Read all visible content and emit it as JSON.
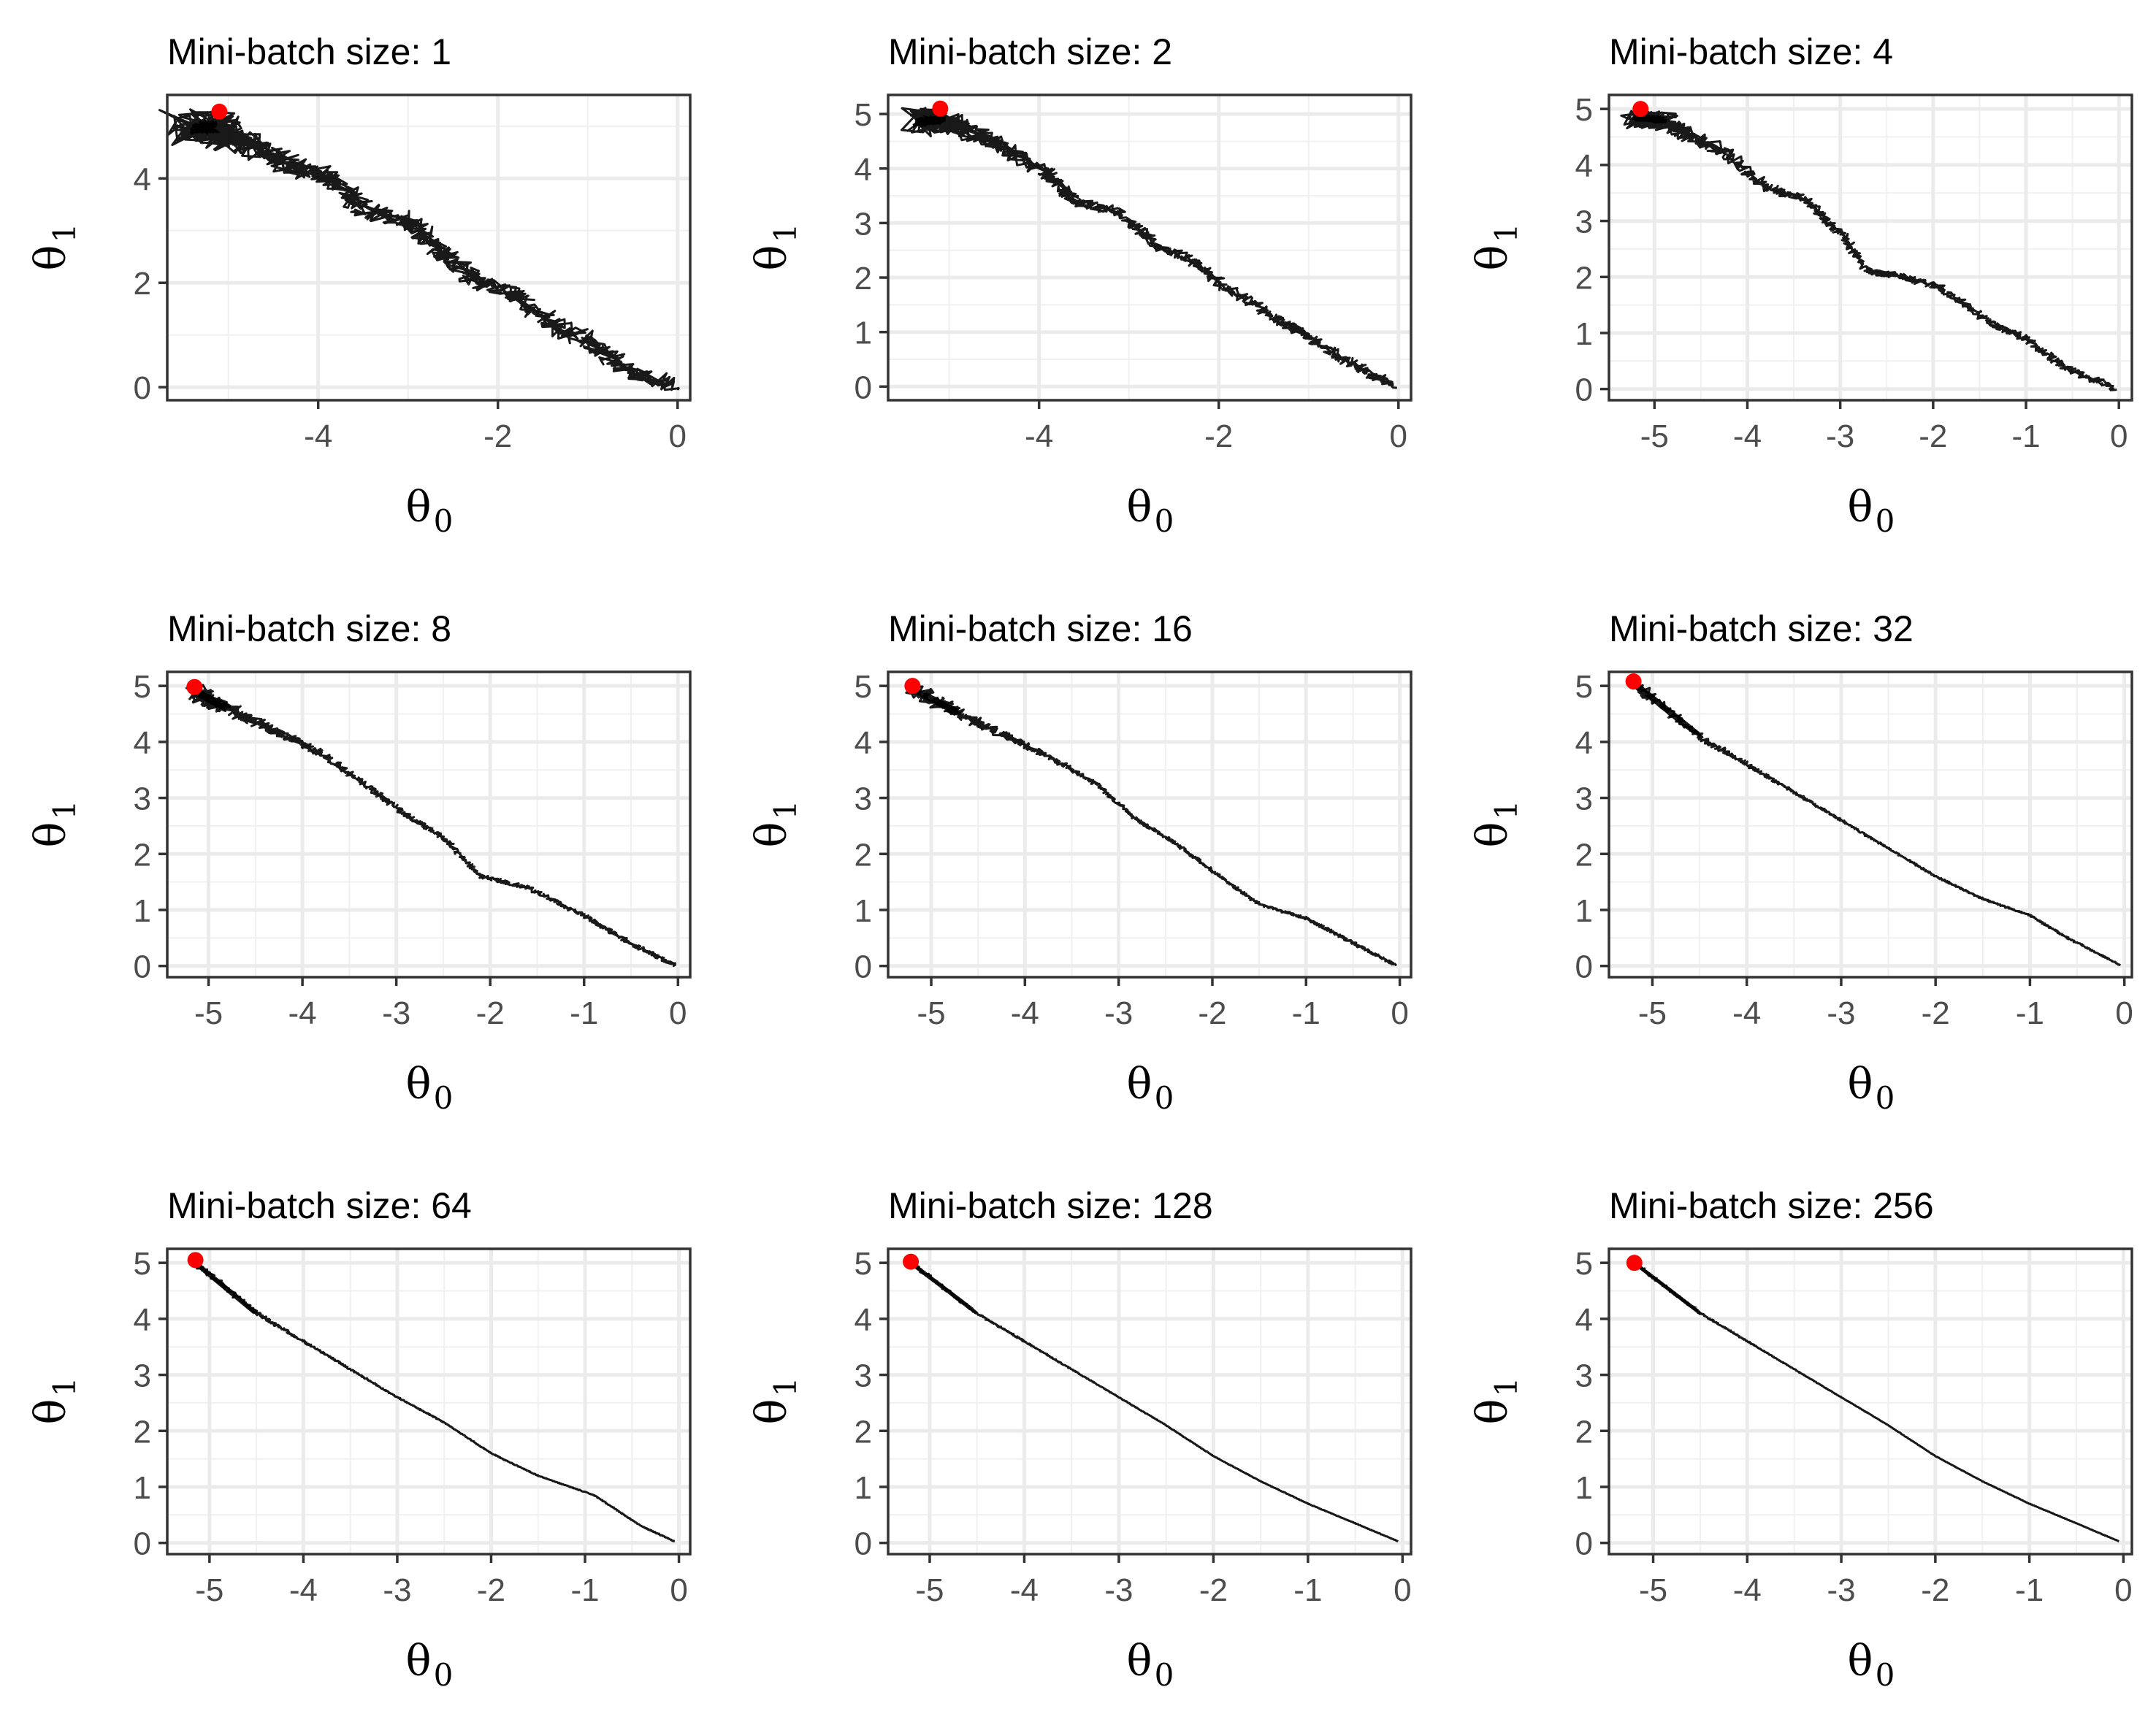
{
  "chart_data": [
    {
      "type": "line",
      "title": "Mini-batch size: 1",
      "xlabel": "θ",
      "xlabel_sub": "0",
      "ylabel": "θ",
      "ylabel_sub": "1",
      "xlim": [
        -5.68,
        0.14
      ],
      "ylim": [
        -0.25,
        5.6
      ],
      "xticks": [
        -4,
        -2,
        0
      ],
      "xtick_labels": [
        "-4",
        "-2",
        "0"
      ],
      "yticks": [
        0,
        2,
        4
      ],
      "ytick_labels": [
        "0",
        "2",
        "4"
      ],
      "grid": true,
      "noise": 0.13,
      "spread": 0.3,
      "series": [
        {
          "x": [
            -0.05,
            -0.6,
            -1.0,
            -1.4,
            -1.8,
            -2.3,
            -2.7,
            -3.0,
            -3.5,
            -3.8,
            -4.2,
            -4.7,
            -5.0,
            -5.2,
            -5.35
          ],
          "y": [
            0.02,
            0.35,
            0.9,
            1.2,
            1.75,
            2.1,
            2.7,
            3.2,
            3.4,
            4.0,
            4.2,
            4.6,
            4.8,
            5.0,
            4.95
          ]
        },
        {
          "x": [
            -5.1
          ],
          "y": [
            5.28
          ],
          "marker": "point",
          "color": "#ff0000"
        }
      ]
    },
    {
      "type": "line",
      "title": "Mini-batch size: 2",
      "xlabel": "θ",
      "xlabel_sub": "0",
      "ylabel": "θ",
      "ylabel_sub": "1",
      "xlim": [
        -5.68,
        0.14
      ],
      "ylim": [
        -0.25,
        5.35
      ],
      "xticks": [
        -4,
        -2,
        0
      ],
      "xtick_labels": [
        "-4",
        "-2",
        "0"
      ],
      "yticks": [
        0,
        1,
        2,
        3,
        4,
        5
      ],
      "ytick_labels": [
        "0",
        "1",
        "2",
        "3",
        "4",
        "5"
      ],
      "grid": true,
      "noise": 0.07,
      "spread": 0.2,
      "series": [
        {
          "x": [
            -0.05,
            -0.5,
            -1.0,
            -1.3,
            -1.9,
            -2.3,
            -2.7,
            -3.1,
            -3.6,
            -3.9,
            -4.4,
            -4.8,
            -5.1,
            -5.35
          ],
          "y": [
            0.02,
            0.4,
            0.9,
            1.2,
            1.8,
            2.3,
            2.6,
            3.2,
            3.4,
            3.9,
            4.4,
            4.7,
            4.9,
            4.85
          ]
        },
        {
          "x": [
            -5.1
          ],
          "y": [
            5.1
          ],
          "marker": "point",
          "color": "#ff0000"
        }
      ]
    },
    {
      "type": "line",
      "title": "Mini-batch size: 4",
      "xlabel": "θ",
      "xlabel_sub": "0",
      "ylabel": "θ",
      "ylabel_sub": "1",
      "xlim": [
        -5.49,
        0.14
      ],
      "ylim": [
        -0.2,
        5.25
      ],
      "xticks": [
        -5,
        -4,
        -3,
        -2,
        -1,
        0
      ],
      "xtick_labels": [
        "-5",
        "-4",
        "-3",
        "-2",
        "-1",
        "0"
      ],
      "yticks": [
        0,
        1,
        2,
        3,
        4,
        5
      ],
      "ytick_labels": [
        "0",
        "1",
        "2",
        "3",
        "4",
        "5"
      ],
      "grid": true,
      "noise": 0.05,
      "spread": 0.15,
      "series": [
        {
          "x": [
            -0.05,
            -0.6,
            -1.0,
            -1.4,
            -1.9,
            -2.3,
            -2.7,
            -3.0,
            -3.4,
            -3.8,
            -4.2,
            -4.6,
            -4.9,
            -5.2
          ],
          "y": [
            0.02,
            0.4,
            0.9,
            1.2,
            1.8,
            2.0,
            2.1,
            2.8,
            3.4,
            3.6,
            4.2,
            4.5,
            4.8,
            4.85
          ]
        },
        {
          "x": [
            -5.15
          ],
          "y": [
            5.0
          ],
          "marker": "point",
          "color": "#ff0000"
        }
      ]
    },
    {
      "type": "line",
      "title": "Mini-batch size: 8",
      "xlabel": "θ",
      "xlabel_sub": "0",
      "ylabel": "θ",
      "ylabel_sub": "1",
      "xlim": [
        -5.44,
        0.13
      ],
      "ylim": [
        -0.2,
        5.25
      ],
      "xticks": [
        -5,
        -4,
        -3,
        -2,
        -1,
        0
      ],
      "xtick_labels": [
        "-5",
        "-4",
        "-3",
        "-2",
        "-1",
        "0"
      ],
      "yticks": [
        0,
        1,
        2,
        3,
        4,
        5
      ],
      "ytick_labels": [
        "0",
        "1",
        "2",
        "3",
        "4",
        "5"
      ],
      "grid": true,
      "noise": 0.03,
      "spread": 0.12,
      "series": [
        {
          "x": [
            -0.05,
            -0.5,
            -1.0,
            -1.6,
            -2.1,
            -2.5,
            -2.9,
            -3.3,
            -3.8,
            -4.3,
            -4.8,
            -5.15
          ],
          "y": [
            0.02,
            0.4,
            0.9,
            1.4,
            1.6,
            2.3,
            2.7,
            3.2,
            3.8,
            4.2,
            4.6,
            4.9
          ]
        },
        {
          "x": [
            -5.15
          ],
          "y": [
            4.98
          ],
          "marker": "point",
          "color": "#ff0000"
        }
      ]
    },
    {
      "type": "line",
      "title": "Mini-batch size: 16",
      "xlabel": "θ",
      "xlabel_sub": "0",
      "ylabel": "θ",
      "ylabel_sub": "1",
      "xlim": [
        -5.46,
        0.12
      ],
      "ylim": [
        -0.2,
        5.25
      ],
      "xticks": [
        -5,
        -4,
        -3,
        -2,
        -1,
        0
      ],
      "xtick_labels": [
        "-5",
        "-4",
        "-3",
        "-2",
        "-1",
        "0"
      ],
      "yticks": [
        0,
        1,
        2,
        3,
        4,
        5
      ],
      "ytick_labels": [
        "0",
        "1",
        "2",
        "3",
        "4",
        "5"
      ],
      "grid": true,
      "noise": 0.02,
      "spread": 0.1,
      "series": [
        {
          "x": [
            -0.05,
            -0.6,
            -1.0,
            -1.5,
            -2.0,
            -2.4,
            -2.8,
            -3.2,
            -3.7,
            -4.2,
            -4.7,
            -5.2
          ],
          "y": [
            0.02,
            0.5,
            0.85,
            1.1,
            1.7,
            2.2,
            2.6,
            3.2,
            3.7,
            4.1,
            4.5,
            4.95
          ]
        },
        {
          "x": [
            -5.2
          ],
          "y": [
            5.0
          ],
          "marker": "point",
          "color": "#ff0000"
        }
      ]
    },
    {
      "type": "line",
      "title": "Mini-batch size: 32",
      "xlabel": "θ",
      "xlabel_sub": "0",
      "ylabel": "θ",
      "ylabel_sub": "1",
      "xlim": [
        -5.46,
        0.08
      ],
      "ylim": [
        -0.2,
        5.25
      ],
      "xticks": [
        -5,
        -4,
        -3,
        -2,
        -1,
        0
      ],
      "xtick_labels": [
        "-5",
        "-4",
        "-3",
        "-2",
        "-1",
        "0"
      ],
      "yticks": [
        0,
        1,
        2,
        3,
        4,
        5
      ],
      "ytick_labels": [
        "0",
        "1",
        "2",
        "3",
        "4",
        "5"
      ],
      "grid": true,
      "noise": 0.012,
      "spread": 0.06,
      "series": [
        {
          "x": [
            -0.05,
            -0.6,
            -1.0,
            -1.5,
            -2.0,
            -2.5,
            -3.0,
            -3.5,
            -4.0,
            -4.5,
            -5.2
          ],
          "y": [
            0.02,
            0.5,
            0.9,
            1.2,
            1.6,
            2.1,
            2.6,
            3.1,
            3.6,
            4.1,
            5.05
          ]
        },
        {
          "x": [
            -5.2
          ],
          "y": [
            5.08
          ],
          "marker": "point",
          "color": "#ff0000"
        }
      ]
    },
    {
      "type": "line",
      "title": "Mini-batch size: 64",
      "xlabel": "θ",
      "xlabel_sub": "0",
      "ylabel": "θ",
      "ylabel_sub": "1",
      "xlim": [
        -5.45,
        0.12
      ],
      "ylim": [
        -0.2,
        5.25
      ],
      "xticks": [
        -5,
        -4,
        -3,
        -2,
        -1,
        0
      ],
      "xtick_labels": [
        "-5",
        "-4",
        "-3",
        "-2",
        "-1",
        "0"
      ],
      "yticks": [
        0,
        1,
        2,
        3,
        4,
        5
      ],
      "ytick_labels": [
        "0",
        "1",
        "2",
        "3",
        "4",
        "5"
      ],
      "grid": true,
      "noise": 0.006,
      "spread": 0.04,
      "series": [
        {
          "x": [
            -0.05,
            -0.4,
            -0.9,
            -1.5,
            -2.0,
            -2.5,
            -3.0,
            -3.5,
            -4.0,
            -4.5,
            -5.15
          ],
          "y": [
            0.03,
            0.3,
            0.85,
            1.2,
            1.6,
            2.15,
            2.6,
            3.1,
            3.6,
            4.1,
            5.0
          ]
        },
        {
          "x": [
            -5.15
          ],
          "y": [
            5.05
          ],
          "marker": "point",
          "color": "#ff0000"
        }
      ]
    },
    {
      "type": "line",
      "title": "Mini-batch size: 128",
      "xlabel": "θ",
      "xlabel_sub": "0",
      "ylabel": "θ",
      "ylabel_sub": "1",
      "xlim": [
        -5.44,
        0.09
      ],
      "ylim": [
        -0.2,
        5.25
      ],
      "xticks": [
        -5,
        -4,
        -3,
        -2,
        -1,
        0
      ],
      "xtick_labels": [
        "-5",
        "-4",
        "-3",
        "-2",
        "-1",
        "0"
      ],
      "yticks": [
        0,
        1,
        2,
        3,
        4,
        5
      ],
      "ytick_labels": [
        "0",
        "1",
        "2",
        "3",
        "4",
        "5"
      ],
      "grid": true,
      "noise": 0.004,
      "spread": 0.025,
      "series": [
        {
          "x": [
            -0.05,
            -0.5,
            -1.0,
            -1.5,
            -2.0,
            -2.5,
            -3.0,
            -3.5,
            -4.0,
            -4.5,
            -5.2
          ],
          "y": [
            0.03,
            0.35,
            0.7,
            1.1,
            1.55,
            2.1,
            2.6,
            3.1,
            3.6,
            4.1,
            5.0
          ]
        },
        {
          "x": [
            -5.2
          ],
          "y": [
            5.02
          ],
          "marker": "point",
          "color": "#ff0000"
        }
      ]
    },
    {
      "type": "line",
      "title": "Mini-batch size: 256",
      "xlabel": "θ",
      "xlabel_sub": "0",
      "ylabel": "θ",
      "ylabel_sub": "1",
      "xlim": [
        -5.47,
        0.09
      ],
      "ylim": [
        -0.2,
        5.25
      ],
      "xticks": [
        -5,
        -4,
        -3,
        -2,
        -1,
        0
      ],
      "xtick_labels": [
        "-5",
        "-4",
        "-3",
        "-2",
        "-1",
        "0"
      ],
      "yticks": [
        0,
        1,
        2,
        3,
        4,
        5
      ],
      "ytick_labels": [
        "0",
        "1",
        "2",
        "3",
        "4",
        "5"
      ],
      "grid": true,
      "noise": 0.003,
      "spread": 0.02,
      "series": [
        {
          "x": [
            -0.05,
            -0.5,
            -1.0,
            -1.5,
            -2.0,
            -2.5,
            -3.0,
            -3.5,
            -4.0,
            -4.5,
            -5.2
          ],
          "y": [
            0.03,
            0.35,
            0.7,
            1.1,
            1.55,
            2.1,
            2.6,
            3.1,
            3.6,
            4.1,
            5.0
          ]
        },
        {
          "x": [
            -5.2
          ],
          "y": [
            5.0
          ],
          "marker": "point",
          "color": "#ff0000"
        }
      ]
    }
  ]
}
